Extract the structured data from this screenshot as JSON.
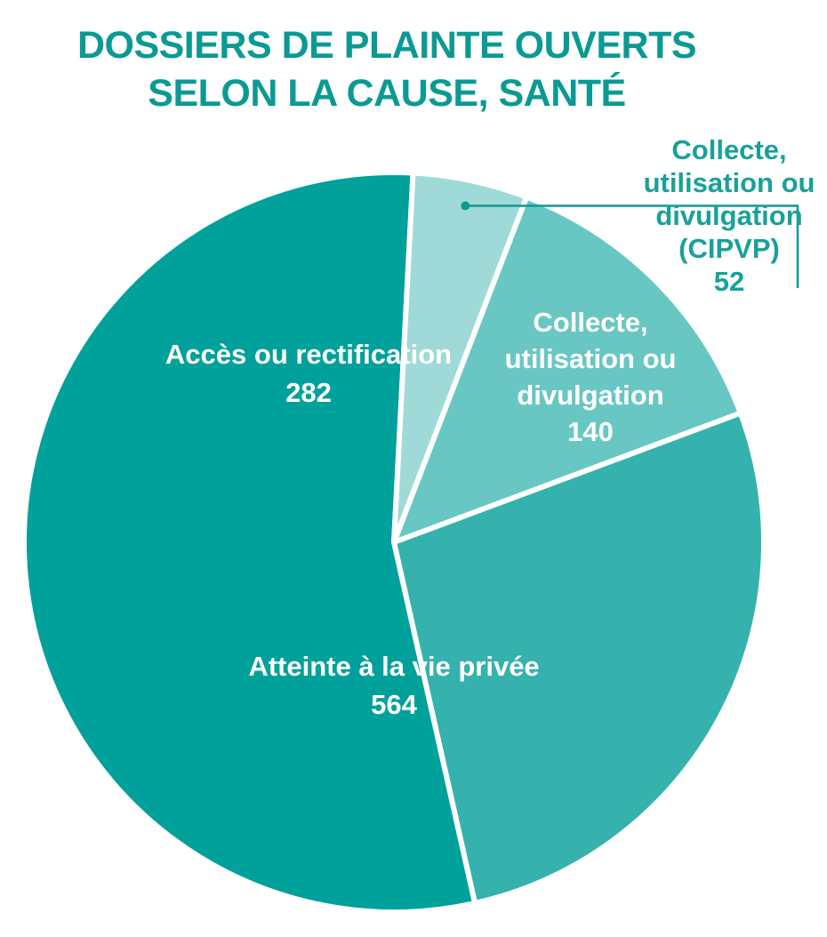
{
  "title": {
    "line1": "DOSSIERS DE PLAINTE OUVERTS",
    "line2": "SELON LA CAUSE, SANTÉ"
  },
  "chart_data": {
    "type": "pie",
    "title": "DOSSIERS DE PLAINTE OUVERTS SELON LA CAUSE, SANTÉ",
    "slices": [
      {
        "label": "Collecte, utilisation ou divulgation",
        "value": 140,
        "color": "#68c7c3",
        "label_lines": [
          "Collecte,",
          "utilisation ou",
          "divulgation",
          "140"
        ]
      },
      {
        "label": "Accès ou rectification",
        "value": 282,
        "color": "#35b2ad",
        "label_lines": [
          "Accès ou rectification",
          "282"
        ]
      },
      {
        "label": "Atteinte à la vie privée",
        "value": 564,
        "color": "#00a19a",
        "label_lines": [
          "Atteinte à la vie privée",
          "564"
        ]
      },
      {
        "label": "Collecte, utilisation ou divulgation (CIPVP)",
        "value": 52,
        "color": "#9fdad8",
        "label_lines": [
          "Collecte,",
          "utilisation ou",
          "divulgation",
          "(CIPVP)",
          "52"
        ],
        "external": true
      }
    ],
    "callout_color": "#0b9a93"
  }
}
